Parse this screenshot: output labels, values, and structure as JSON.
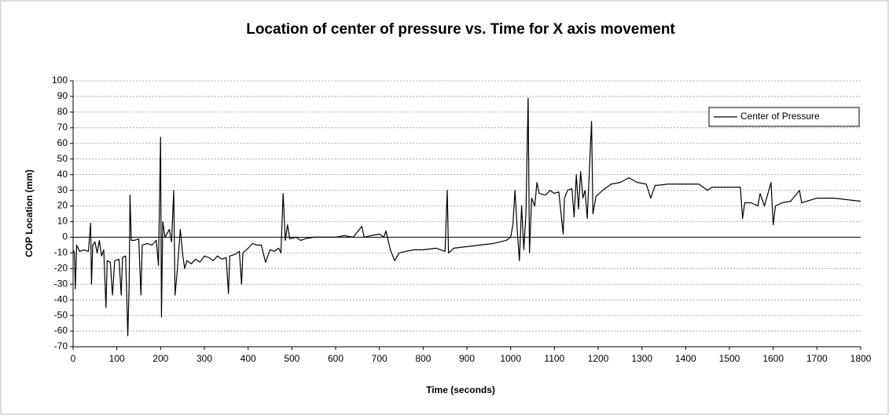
{
  "chart_data": {
    "type": "line",
    "title": "Location of center of pressure vs. Time for X axis movement",
    "x_label": "Time (seconds)",
    "y_label": "COP Location (mm)",
    "x": [
      0,
      3,
      5,
      8,
      15,
      25,
      35,
      40,
      42,
      45,
      50,
      55,
      60,
      65,
      70,
      75,
      78,
      85,
      90,
      95,
      105,
      110,
      113,
      120,
      125,
      128,
      130,
      133,
      140,
      150,
      155,
      158,
      170,
      180,
      190,
      195,
      200,
      202,
      205,
      210,
      220,
      225,
      230,
      233,
      237,
      245,
      250,
      255,
      260,
      270,
      280,
      290,
      300,
      310,
      320,
      330,
      340,
      350,
      355,
      358,
      370,
      380,
      385,
      388,
      400,
      410,
      420,
      430,
      440,
      450,
      460,
      470,
      475,
      480,
      485,
      490,
      495,
      510,
      520,
      530,
      550,
      580,
      600,
      620,
      640,
      660,
      665,
      680,
      700,
      710,
      715,
      725,
      735,
      745,
      760,
      780,
      800,
      830,
      850,
      855,
      858,
      870,
      900,
      930,
      960,
      990,
      1000,
      1005,
      1010,
      1015,
      1020,
      1025,
      1030,
      1035,
      1040,
      1043,
      1048,
      1055,
      1060,
      1065,
      1080,
      1090,
      1100,
      1110,
      1120,
      1123,
      1130,
      1140,
      1145,
      1150,
      1155,
      1160,
      1165,
      1170,
      1175,
      1180,
      1185,
      1188,
      1195,
      1210,
      1230,
      1250,
      1270,
      1290,
      1310,
      1320,
      1330,
      1360,
      1400,
      1430,
      1450,
      1460,
      1500,
      1525,
      1530,
      1535,
      1550,
      1565,
      1570,
      1580,
      1590,
      1595,
      1600,
      1605,
      1620,
      1640,
      1660,
      1665,
      1700,
      1740,
      1770,
      1800
    ],
    "series": [
      {
        "name": "Center of Pressure",
        "color": "#000000",
        "values": [
          -8,
          -10,
          -33,
          -5,
          -9,
          -8,
          -9,
          9,
          -30,
          -5,
          -3,
          -10,
          -2,
          -12,
          -8,
          -45,
          -15,
          -16,
          -37,
          -15,
          -14,
          -37,
          -13,
          -12,
          -63,
          -30,
          27,
          -2,
          -2,
          -1,
          -37,
          -5,
          -4,
          -5,
          -2,
          -18,
          64,
          -51,
          10,
          0,
          5,
          -3,
          30,
          -37,
          -25,
          5,
          -10,
          -20,
          -15,
          -17,
          -14,
          -16,
          -12,
          -13,
          -15,
          -12,
          -14,
          -13,
          -36,
          -12,
          -11,
          -9,
          -30,
          -10,
          -7,
          -4,
          -5,
          -5,
          -16,
          -8,
          -9,
          -7,
          -10,
          28,
          -2,
          8,
          -1,
          0,
          -2,
          -1,
          0,
          0,
          0,
          1,
          0,
          7,
          0,
          1,
          2,
          0,
          4,
          -8,
          -15,
          -10,
          -9,
          -8,
          -8,
          -7,
          -9,
          30,
          -10,
          -7,
          -6,
          -5,
          -4,
          -2,
          0,
          8,
          30,
          5,
          -15,
          20,
          -8,
          15,
          89,
          -10,
          25,
          20,
          35,
          28,
          27,
          30,
          28,
          29,
          2,
          25,
          30,
          31,
          13,
          40,
          18,
          42,
          25,
          30,
          12,
          44,
          74,
          15,
          26,
          30,
          34,
          35,
          38,
          35,
          34,
          25,
          33,
          34,
          34,
          34,
          30,
          32,
          32,
          32,
          12,
          22,
          22,
          20,
          28,
          20,
          30,
          35,
          8,
          20,
          22,
          23,
          30,
          22,
          25,
          25,
          24,
          23
        ]
      }
    ],
    "xlim": [
      0,
      1800
    ],
    "xticks": [
      0,
      100,
      200,
      300,
      400,
      500,
      600,
      700,
      800,
      900,
      1000,
      1100,
      1200,
      1300,
      1400,
      1500,
      1600,
      1700,
      1800
    ],
    "ylim": [
      -70,
      100
    ],
    "yticks": [
      -70,
      -60,
      -50,
      -40,
      -30,
      -20,
      -10,
      0,
      10,
      20,
      30,
      40,
      50,
      60,
      70,
      80,
      90,
      100
    ],
    "grid": true,
    "legend": "upper right"
  }
}
